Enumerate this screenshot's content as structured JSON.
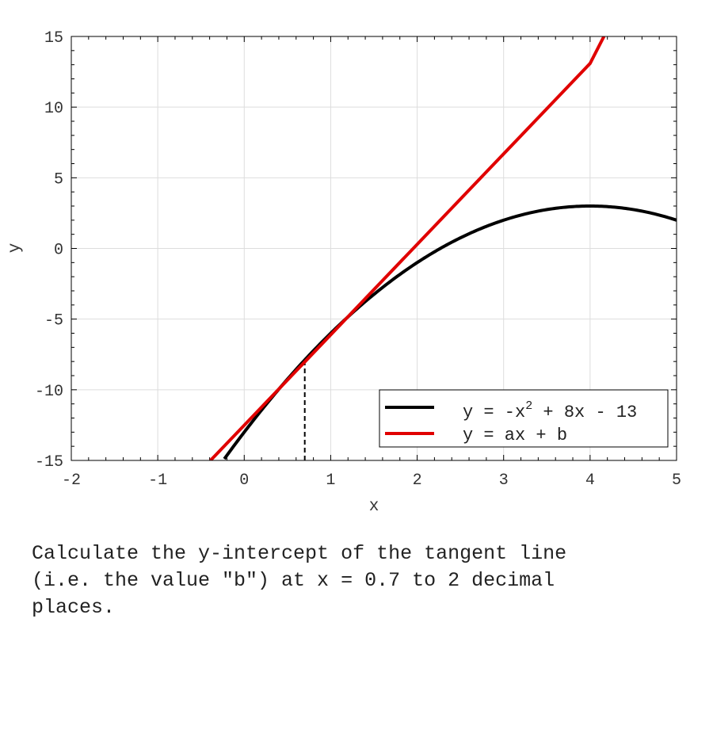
{
  "chart_data": {
    "type": "line",
    "title": "",
    "xlabel": "x",
    "ylabel": "y",
    "xlim": [
      -2,
      5
    ],
    "ylim": [
      -15,
      15
    ],
    "xticks": [
      "-2",
      "-1",
      "0",
      "1",
      "2",
      "3",
      "4",
      "5"
    ],
    "yticks": [
      "15",
      "10",
      "5",
      "0",
      "-5",
      "-10",
      "-15"
    ],
    "grid": true,
    "legend_position": "bottom-right",
    "series": [
      {
        "name": "y = -x^2 + 8x - 13",
        "label_main": "y = -x",
        "label_sup": "2",
        "label_rest": " + 8x - 13",
        "color": "#000000",
        "x": [
          -0.23,
          0,
          0.5,
          0.7,
          1,
          1.5,
          2,
          2.5,
          3,
          3.5,
          4,
          4.5,
          5
        ],
        "y": [
          -14.89,
          -13,
          -9.25,
          -7.89,
          -6,
          -3.25,
          -1,
          0.75,
          2,
          2.75,
          3,
          2.75,
          2
        ]
      },
      {
        "name": "y = ax + b",
        "color": "#e00000",
        "x": [
          -0.39,
          0,
          1,
          2,
          3,
          4,
          4.16
        ],
        "y": [
          -15,
          -12.51,
          -6.11,
          0.29,
          6.69,
          13.09,
          15
        ]
      }
    ],
    "tangent_marker": {
      "x": 0.7,
      "y": -7.89,
      "color": "#000000",
      "style": "dashed"
    }
  },
  "question": "Calculate the y-intercept of the tangent line\n(i.e. the value \"b\") at x = 0.7 to 2 decimal\nplaces."
}
